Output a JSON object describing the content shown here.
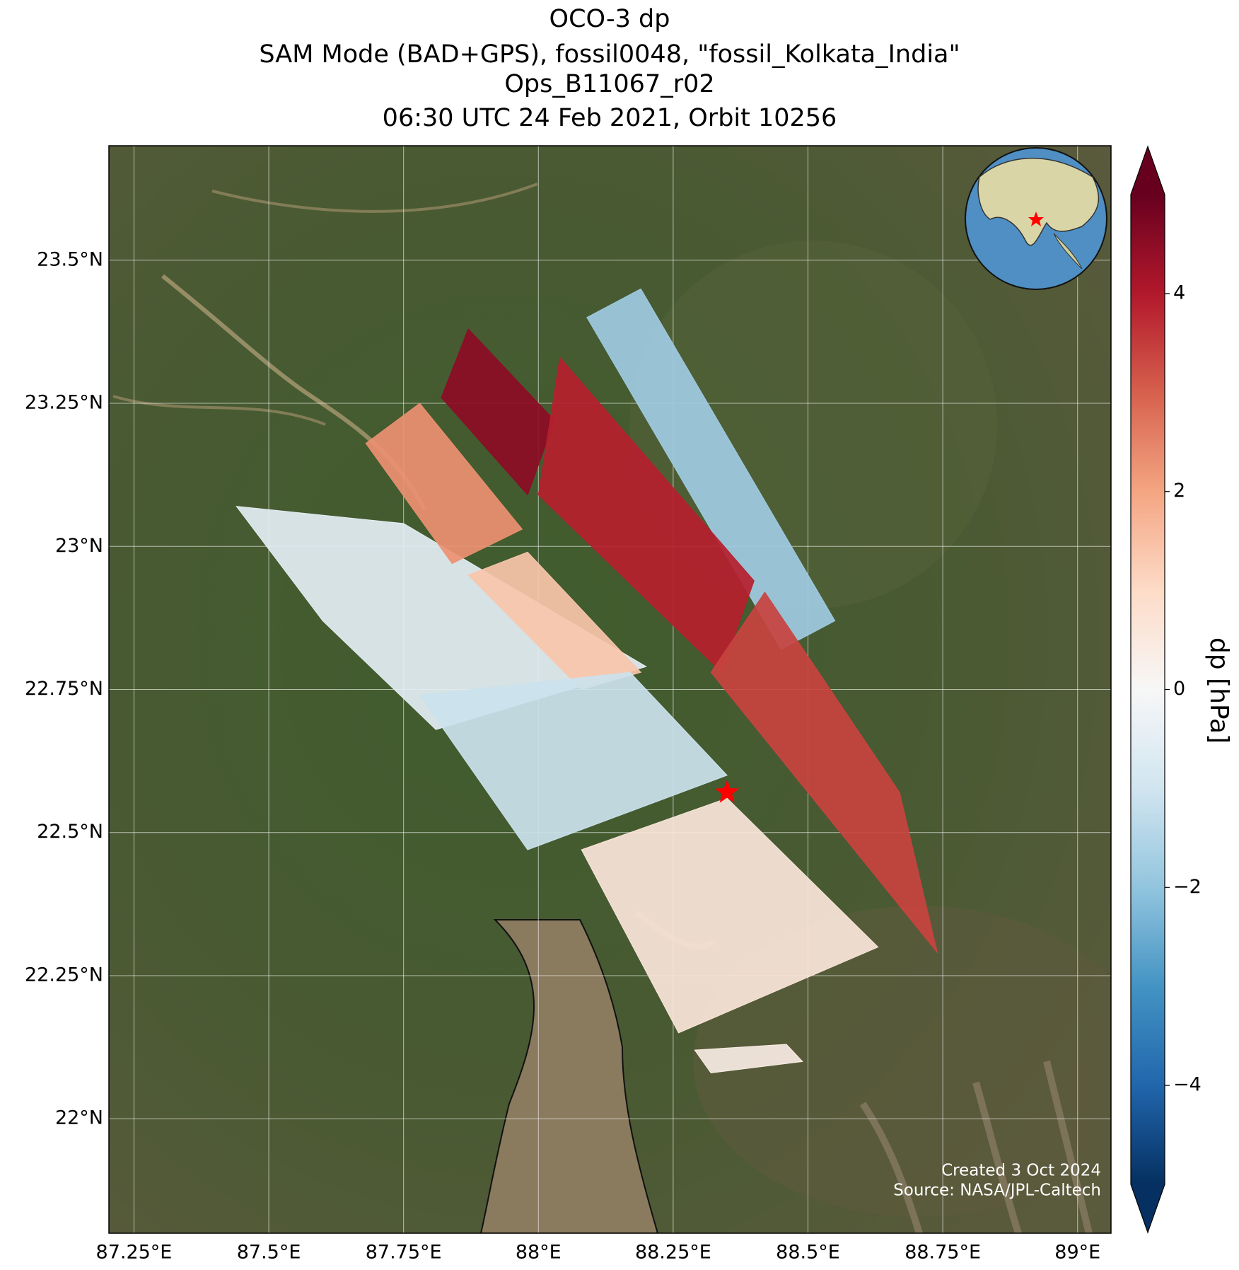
{
  "chart_data": {
    "type": "map",
    "title": [
      "OCO-3 dp",
      "SAM Mode (BAD+GPS), fossil0048, \"fossil_Kolkata_India\"",
      "Ops_B11067_r02",
      "06:30 UTC 24 Feb 2021, Orbit 10256"
    ],
    "xlim": [
      87.2035,
      89.062
    ],
    "ylim": [
      21.8,
      23.7
    ],
    "xticks": [
      {
        "value": 87.25,
        "label": "87.25°E"
      },
      {
        "value": 87.5,
        "label": "87.5°E"
      },
      {
        "value": 87.75,
        "label": "87.75°E"
      },
      {
        "value": 88,
        "label": "88°E"
      },
      {
        "value": 88.25,
        "label": "88.25°E"
      },
      {
        "value": 88.5,
        "label": "88.5°E"
      },
      {
        "value": 88.75,
        "label": "88.75°E"
      },
      {
        "value": 89,
        "label": "89°E"
      }
    ],
    "yticks": [
      {
        "value": 22,
        "label": "22°N"
      },
      {
        "value": 22.25,
        "label": "22.25°N"
      },
      {
        "value": 22.5,
        "label": "22.5°N"
      },
      {
        "value": 22.75,
        "label": "22.75°N"
      },
      {
        "value": 23,
        "label": "23°N"
      },
      {
        "value": 23.25,
        "label": "23.25°N"
      },
      {
        "value": 23.5,
        "label": "23.5°N"
      }
    ],
    "grid": true,
    "colorbar": {
      "label": "dp [hPa]",
      "clim": [
        -5,
        5
      ],
      "ticks": [
        {
          "value": -4,
          "label": "−4"
        },
        {
          "value": -2,
          "label": "−2"
        },
        0,
        2,
        4
      ]
    },
    "swaths": [
      {
        "value": -0.5,
        "corners": [
          [
            87.44,
            23.07
          ],
          [
            87.75,
            23.04
          ],
          [
            88.2,
            22.79
          ],
          [
            87.81,
            22.68
          ],
          [
            87.6,
            22.87
          ]
        ]
      },
      {
        "value": 1.4,
        "corners": [
          [
            87.87,
            22.95
          ],
          [
            87.98,
            22.99
          ],
          [
            88.19,
            22.78
          ],
          [
            88.08,
            22.75
          ]
        ]
      },
      {
        "value": -1.1,
        "corners": [
          [
            87.78,
            22.74
          ],
          [
            88.17,
            22.78
          ],
          [
            88.35,
            22.6
          ],
          [
            87.98,
            22.47
          ]
        ]
      },
      {
        "value": 0.6,
        "corners": [
          [
            88.08,
            22.47
          ],
          [
            88.35,
            22.56
          ],
          [
            88.63,
            22.3
          ],
          [
            88.26,
            22.15
          ]
        ]
      },
      {
        "value": 0.4,
        "corners": [
          [
            88.29,
            22.12
          ],
          [
            88.46,
            22.13
          ],
          [
            88.49,
            22.1
          ],
          [
            88.32,
            22.08
          ]
        ]
      },
      {
        "value": -1.8,
        "corners": [
          [
            88.09,
            23.4
          ],
          [
            88.19,
            23.45
          ],
          [
            88.55,
            22.87
          ],
          [
            88.45,
            22.82
          ]
        ]
      },
      {
        "value": 2.3,
        "corners": [
          [
            87.68,
            23.18
          ],
          [
            87.78,
            23.25
          ],
          [
            87.97,
            23.03
          ],
          [
            87.84,
            22.97
          ]
        ]
      },
      {
        "value": 4.5,
        "corners": [
          [
            87.82,
            23.26
          ],
          [
            87.87,
            23.38
          ],
          [
            88.03,
            23.22
          ],
          [
            87.98,
            23.09
          ]
        ]
      },
      {
        "value": 3.9,
        "corners": [
          [
            88.04,
            23.33
          ],
          [
            88.4,
            22.94
          ],
          [
            88.34,
            22.78
          ],
          [
            88.0,
            23.09
          ]
        ]
      },
      {
        "value": 3.4,
        "corners": [
          [
            88.42,
            22.92
          ],
          [
            88.67,
            22.57
          ],
          [
            88.74,
            22.29
          ],
          [
            88.32,
            22.78
          ]
        ]
      }
    ],
    "target": {
      "lon": 88.35,
      "lat": 22.57
    },
    "credits": [
      "Created 3 Oct 2024",
      "Source: NASA/JPL-Caltech"
    ]
  }
}
